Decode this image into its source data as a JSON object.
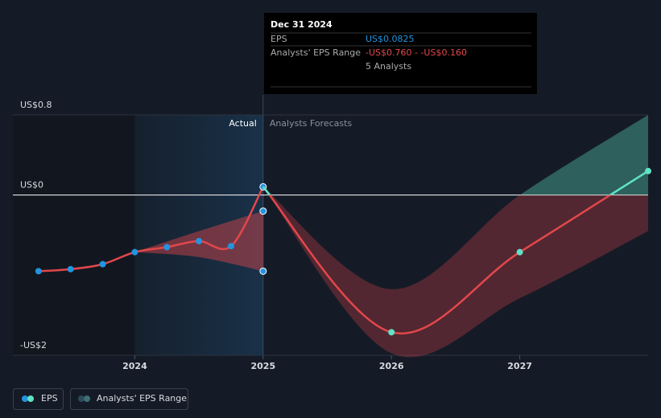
{
  "chart_data": {
    "type": "line",
    "xlim": [
      2023.05,
      2028.0
    ],
    "xticks": [
      2024,
      2025,
      2026,
      2027
    ],
    "ylim": [
      -1.6,
      0.8
    ],
    "yticks": [
      {
        "value": 0.8,
        "label": "US$0.8"
      },
      {
        "value": 0,
        "label": "US$0"
      },
      {
        "value": -1.6,
        "label": "-US$2"
      }
    ],
    "regions": {
      "actual": "Actual",
      "forecast": "Analysts Forecasts",
      "split": 2025
    },
    "series": [
      {
        "name": "EPS",
        "color": "#e2474b",
        "marker_color": "#2394df",
        "x": [
          2023.25,
          2023.5,
          2023.75,
          2024.0,
          2024.25,
          2024.5,
          2024.75,
          2025.0
        ],
        "values": [
          -0.76,
          -0.74,
          -0.69,
          -0.57,
          -0.52,
          -0.46,
          -0.51,
          0.0825
        ]
      },
      {
        "name": "EPS forecast",
        "color": "#e2474b",
        "positive_color": "#5fe3c6",
        "x": [
          2025.0,
          2026.0,
          2027.0,
          2028.0
        ],
        "values": [
          0.0825,
          -1.37,
          -0.57,
          0.24
        ]
      }
    ],
    "ranges": [
      {
        "name": "Analysts' EPS Range",
        "x": [
          2024.0,
          2024.5,
          2025.0
        ],
        "low": [
          -0.57,
          -0.62,
          -0.76
        ],
        "high": [
          -0.57,
          -0.36,
          -0.16
        ],
        "color": "#e2474b"
      },
      {
        "name": "Analysts' EPS Range",
        "x": [
          2025.0,
          2026.0,
          2027.0,
          2028.0
        ],
        "low": [
          0.0825,
          -1.58,
          -1.03,
          -0.36
        ],
        "high": [
          0.0825,
          -0.94,
          0.0,
          0.8
        ],
        "color": "#e2474b",
        "positive_color": "#5fe3c6"
      }
    ],
    "tooltip": {
      "date": "Dec 31 2024",
      "eps_label": "EPS",
      "eps_value": "US$0.0825",
      "range_label": "Analysts' EPS Range",
      "range_value": "-US$0.760 - -US$0.160",
      "analysts": "5 Analysts"
    },
    "legend": [
      "EPS",
      "Analysts' EPS Range"
    ]
  }
}
